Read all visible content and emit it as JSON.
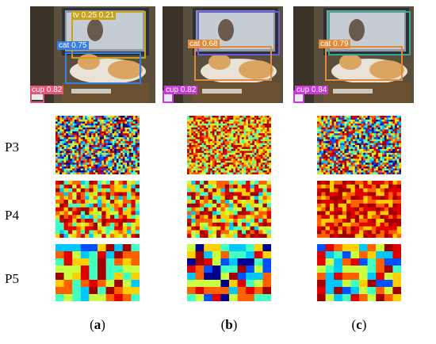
{
  "columns": [
    {
      "id": "a",
      "caption_open": "(",
      "caption_letter": "a",
      "caption_close": ")",
      "detections": [
        {
          "text": "tv 0.25 0.21",
          "color": "#c8a21a"
        },
        {
          "text": "cat 0.75",
          "color": "#3a7de0"
        },
        {
          "text": "cup 0.82",
          "color": "#e0577a"
        }
      ]
    },
    {
      "id": "b",
      "caption_open": "(",
      "caption_letter": "b",
      "caption_close": ")",
      "detections": [
        {
          "text": "cat 0.68",
          "color": "#e08a3a"
        },
        {
          "text": "cup 0.82",
          "color": "#c83ad8"
        }
      ]
    },
    {
      "id": "c",
      "caption_open": "(",
      "caption_letter": "c",
      "caption_close": ")",
      "detections": [
        {
          "text": "cat 0.79",
          "color": "#e08a3a"
        },
        {
          "text": "cup 0.84",
          "color": "#c83ad8"
        }
      ]
    }
  ],
  "rows": [
    "P3",
    "P4",
    "P5"
  ],
  "heatmap_palette": [
    "#00008f",
    "#0050ff",
    "#00c8ff",
    "#40ffc0",
    "#c8ff40",
    "#ffd000",
    "#ff6000",
    "#e00000",
    "#a00000"
  ]
}
